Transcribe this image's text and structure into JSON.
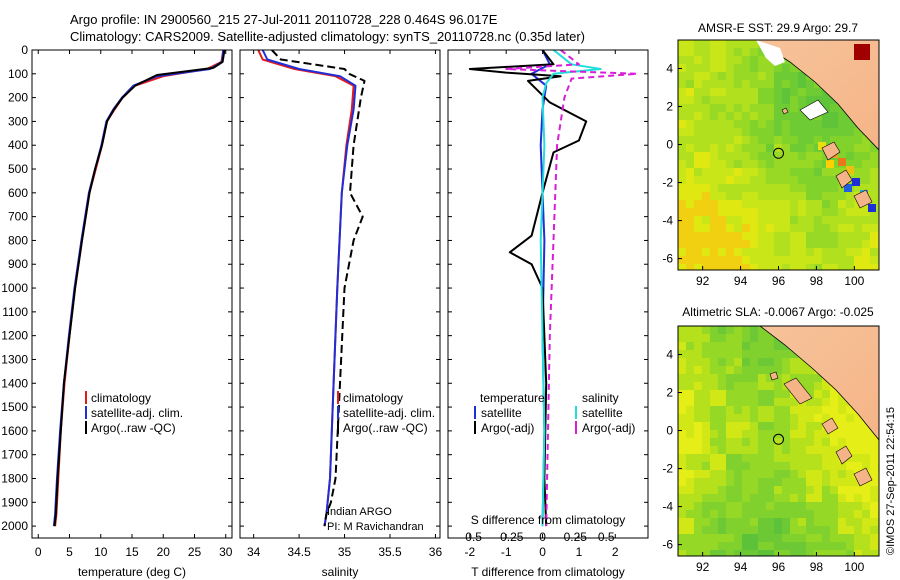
{
  "header": {
    "line1": "Argo profile: IN 2900560_215 27-Jul-2011 20110728_228 0.464S 96.017E",
    "line2": "Climatology: CARS2009. Satellite-adjusted climatology: synTS_20110728.nc (0.35d later)"
  },
  "credit": "©IMOS 27-Sep-2011 22:54:15",
  "colors": {
    "climatology": "#e41a1c",
    "satellite": "#1f2fd6",
    "argo": "#000000",
    "satellite_s": "#22dddd",
    "argo_s": "#d61fd6"
  },
  "chart_data": [
    {
      "type": "line",
      "id": "temperature",
      "xlabel": "temperature (deg C)",
      "ylabel": "",
      "xlim": [
        -1,
        31
      ],
      "ylim": [
        2050,
        0
      ],
      "xticks": [
        0,
        5,
        10,
        15,
        20,
        25,
        30
      ],
      "xtick_labels": [
        "0",
        "5",
        "10",
        "15",
        "20",
        "25",
        "30"
      ],
      "yticks": [
        0,
        100,
        200,
        300,
        400,
        500,
        600,
        700,
        800,
        900,
        1000,
        1100,
        1200,
        1300,
        1400,
        1500,
        1600,
        1700,
        1800,
        1900,
        2000
      ],
      "ytick_labels": [
        "0",
        "100",
        "200",
        "300",
        "400",
        "500",
        "600",
        "700",
        "800",
        "900",
        "1000",
        "1100",
        "1200",
        "1300",
        "1400",
        "1500",
        "1600",
        "1700",
        "1800",
        "1900",
        "2000"
      ],
      "legend": [
        "climatology",
        "satellite-adj. clim.",
        "Argo(..raw -QC)"
      ],
      "series": [
        {
          "name": "climatology",
          "color": "climatology",
          "dash": "",
          "x": [
            29.6,
            29.3,
            27.0,
            20.0,
            15.5,
            13.5,
            12.2,
            11.0,
            10.2,
            9.2,
            8.2,
            7.0,
            5.9,
            5.0,
            4.2,
            3.6,
            3.2,
            2.9,
            2.7
          ],
          "y": [
            0,
            50,
            80,
            110,
            150,
            200,
            250,
            300,
            400,
            500,
            600,
            800,
            1000,
            1200,
            1400,
            1600,
            1800,
            1950,
            2000
          ]
        },
        {
          "name": "satellite-adj. clim.",
          "color": "satellite",
          "dash": "",
          "x": [
            29.6,
            29.4,
            27.5,
            19.0,
            15.2,
            13.4,
            12.0,
            10.9,
            10.1,
            9.1,
            8.1,
            6.9,
            5.8,
            4.9,
            4.1,
            3.5,
            3.0,
            2.7,
            2.5
          ],
          "y": [
            0,
            50,
            80,
            110,
            150,
            200,
            250,
            300,
            400,
            500,
            600,
            800,
            1000,
            1200,
            1400,
            1600,
            1800,
            1950,
            2000
          ]
        },
        {
          "name": "Argo(..raw -QC)",
          "color": "argo",
          "dash": "",
          "x": [
            29.8,
            29.5,
            28.0,
            19.0,
            15.5,
            13.5,
            12.1,
            11.0,
            10.2,
            9.1,
            8.2,
            7.0,
            5.9,
            5.0,
            4.1,
            3.6,
            3.1,
            2.8,
            2.6
          ],
          "y": [
            0,
            50,
            75,
            105,
            150,
            200,
            250,
            300,
            400,
            500,
            600,
            800,
            1000,
            1200,
            1400,
            1600,
            1800,
            1950,
            2000
          ]
        }
      ]
    },
    {
      "type": "line",
      "id": "salinity",
      "xlabel": "salinity",
      "ylabel": "",
      "xlim": [
        33.85,
        36.05
      ],
      "ylim": [
        2050,
        0
      ],
      "xticks": [
        34,
        34.5,
        35,
        35.5,
        36
      ],
      "xtick_labels": [
        "34",
        "34.5",
        "35",
        "35.5",
        "36"
      ],
      "legend": [
        "climatology",
        "satellite-adj. clim.",
        "Argo(..raw -QC)"
      ],
      "annotation": [
        "Indian ARGO",
        "PI: M Ravichandran"
      ],
      "series": [
        {
          "name": "climatology",
          "color": "climatology",
          "dash": "",
          "x": [
            34.05,
            34.1,
            34.45,
            34.9,
            35.1,
            35.08,
            35.02,
            34.97,
            34.92,
            34.88,
            34.84,
            34.8,
            34.78
          ],
          "y": [
            0,
            40,
            80,
            110,
            150,
            250,
            400,
            600,
            1000,
            1400,
            1800,
            1950,
            2000
          ]
        },
        {
          "name": "satellite-adj. clim.",
          "color": "satellite",
          "dash": "",
          "x": [
            34.1,
            34.15,
            34.5,
            34.95,
            35.12,
            35.1,
            35.03,
            34.97,
            34.92,
            34.88,
            34.84,
            34.8,
            34.78
          ],
          "y": [
            0,
            40,
            80,
            110,
            150,
            250,
            400,
            600,
            1000,
            1400,
            1800,
            1950,
            2000
          ]
        },
        {
          "name": "Argo(..raw -QC)",
          "color": "argo",
          "dash": "8,4",
          "x": [
            34.2,
            34.3,
            35.0,
            35.05,
            35.22,
            35.18,
            35.1,
            35.06,
            35.2,
            35.1,
            35.0,
            34.95,
            34.9,
            34.85,
            34.8,
            34.78
          ],
          "y": [
            0,
            40,
            80,
            100,
            130,
            200,
            400,
            600,
            700,
            800,
            1000,
            1400,
            1800,
            1900,
            1950,
            2000
          ]
        }
      ]
    },
    {
      "type": "line",
      "id": "differences",
      "xlabel": "T difference from climatology",
      "xlabel_top": "S difference from climatology",
      "xlim": [
        -2.6,
        2.9
      ],
      "ylim": [
        2050,
        0
      ],
      "xticks": [
        -2,
        -1,
        0,
        1,
        2
      ],
      "xtick_labels": [
        "-2",
        "-1",
        "0",
        "1",
        "2"
      ],
      "sticks_pos": [
        -1.95,
        -0.9,
        0,
        0.9,
        1.75
      ],
      "stick_labels": [
        "-0.5",
        "-0.25",
        "0",
        "0.25",
        "0.5"
      ],
      "legend_headers": [
        "temperature",
        "salinity"
      ],
      "legend": [
        "satellite",
        "Argo(-adj)",
        "satellite",
        "Argo(-adj)"
      ],
      "series": [
        {
          "name": "satellite",
          "color": "satellite",
          "dash": "",
          "x": [
            0,
            0.2,
            -0.3,
            0.1,
            0,
            -0.05,
            0.05,
            0,
            0.05,
            0
          ],
          "y": [
            0,
            60,
            100,
            150,
            250,
            400,
            800,
            1200,
            1600,
            2000
          ]
        },
        {
          "name": "Argo(-adj)",
          "color": "argo",
          "dash": "",
          "x": [
            0,
            0.3,
            -2.0,
            -1.0,
            0.5,
            -0.4,
            0.2,
            1.2,
            1.0,
            0.3,
            0,
            -0.3,
            -0.9,
            -0.3,
            0,
            0.1,
            0.05,
            0.1
          ],
          "y": [
            0,
            60,
            80,
            95,
            110,
            130,
            220,
            300,
            380,
            430,
            600,
            780,
            850,
            900,
            1000,
            1400,
            1800,
            2000
          ]
        },
        {
          "name": "satellite",
          "color": "satellite_s",
          "dash": "",
          "x": [
            0.3,
            0.8,
            1.6,
            0.3,
            0.1,
            0,
            0.05,
            -0.05,
            0,
            0.05,
            0
          ],
          "y": [
            0,
            60,
            80,
            100,
            140,
            200,
            400,
            800,
            1200,
            1600,
            2000
          ]
        },
        {
          "name": "Argo(-adj)",
          "color": "argo_s",
          "dash": "6,4",
          "x": [
            0.5,
            1.0,
            -1.0,
            2.6,
            0.8,
            0.6,
            0.4,
            0.3,
            0.2,
            0.15,
            0.1
          ],
          "y": [
            0,
            60,
            80,
            100,
            120,
            200,
            400,
            800,
            1200,
            1600,
            2000
          ]
        }
      ]
    },
    {
      "type": "heatmap",
      "id": "sst-map",
      "title": "AMSR-E SST: 29.9 Argo: 29.7",
      "xlim": [
        90.7,
        101.3
      ],
      "ylim": [
        -6.6,
        5.5
      ],
      "xticks": [
        92,
        94,
        96,
        98,
        100
      ],
      "yticks": [
        -6,
        -4,
        -2,
        0,
        2,
        4
      ],
      "marker": {
        "lon": 96.0,
        "lat": -0.46
      }
    },
    {
      "type": "heatmap",
      "id": "sla-map",
      "title": "Altimetric SLA: -0.0067 Argo: -0.025",
      "xlim": [
        90.7,
        101.3
      ],
      "ylim": [
        -6.6,
        5.5
      ],
      "xticks": [
        92,
        94,
        96,
        98,
        100
      ],
      "yticks": [
        -6,
        -4,
        -2,
        0,
        2,
        4
      ],
      "marker": {
        "lon": 96.0,
        "lat": -0.46
      }
    }
  ]
}
